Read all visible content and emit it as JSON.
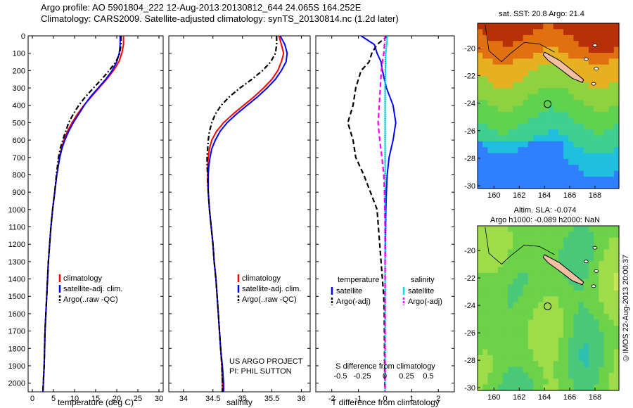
{
  "header": {
    "line1": "Argo profile: AO 5901804_222 12-Aug-2013 20130812_644 24.065S 164.252E",
    "line2": "Climatology: CARS2009. Satellite-adjusted climatology: synTS_20130814.nc (1.2d later)"
  },
  "colors": {
    "climatology": "#ff0000",
    "satellite": "#0000ff",
    "argo": "#000000",
    "salinity_satellite": "#00e5e5",
    "salinity_argo": "#ff00ff",
    "land": "#f2c0a0"
  },
  "chart_data": [
    {
      "id": "temperature",
      "type": "line",
      "xlabel": "temperature (deg C)",
      "ylabel": "",
      "xlim": [
        -1,
        31
      ],
      "ylim": [
        2050,
        0
      ],
      "xticks": [
        "0",
        "5",
        "10",
        "15",
        "20",
        "25",
        "30"
      ],
      "xtick_values": [
        0,
        5,
        10,
        15,
        20,
        25,
        30
      ],
      "yticks": [
        "0",
        "100",
        "200",
        "300",
        "400",
        "500",
        "600",
        "700",
        "800",
        "900",
        "1000",
        "1100",
        "1200",
        "1300",
        "1400",
        "1500",
        "1600",
        "1700",
        "1800",
        "1900",
        "2000"
      ],
      "ytick_values": [
        0,
        100,
        200,
        300,
        400,
        500,
        600,
        700,
        800,
        900,
        1000,
        1100,
        1200,
        1300,
        1400,
        1500,
        1600,
        1700,
        1800,
        1900,
        2000
      ],
      "depth": [
        0,
        50,
        100,
        150,
        200,
        250,
        300,
        350,
        400,
        450,
        500,
        550,
        600,
        650,
        700,
        800,
        900,
        1000,
        1100,
        1200,
        1300,
        1400,
        1500,
        1600,
        1700,
        1800,
        1900,
        2000,
        2050
      ],
      "series": [
        {
          "name": "climatology",
          "style": "solid",
          "values": [
            21.6,
            21.6,
            21.2,
            20.5,
            19.2,
            17.6,
            15.8,
            14.0,
            12.2,
            10.7,
            9.4,
            8.3,
            7.5,
            6.9,
            6.4,
            5.8,
            5.3,
            4.8,
            4.4,
            4.1,
            3.8,
            3.6,
            3.4,
            3.2,
            3.0,
            2.9,
            2.8,
            2.6,
            2.5
          ]
        },
        {
          "name": "satellite-adj. clim.",
          "style": "solid",
          "values": [
            20.8,
            20.8,
            20.6,
            20.0,
            18.9,
            17.4,
            15.6,
            13.8,
            12.3,
            11.0,
            9.7,
            8.6,
            7.7,
            7.0,
            6.5,
            5.8,
            5.3,
            4.8,
            4.4,
            4.1,
            3.8,
            3.6,
            3.4,
            3.2,
            3.0,
            2.9,
            2.8,
            2.6,
            2.5
          ]
        },
        {
          "name": "Argo(..raw -QC)",
          "style": "dashdot",
          "values": [
            21.0,
            21.0,
            20.7,
            19.8,
            18.2,
            16.4,
            14.5,
            12.6,
            11.0,
            9.7,
            8.6,
            7.9,
            7.2,
            6.6,
            6.2,
            5.7,
            5.3,
            4.8,
            4.4,
            4.1,
            3.8,
            3.6,
            3.4,
            3.2,
            3.0,
            2.9,
            2.8,
            2.6,
            2.5
          ]
        }
      ],
      "legend": [
        "climatology",
        "satellite-adj. clim.",
        "Argo(..raw -QC)"
      ],
      "legend_placement": "lower-right"
    },
    {
      "id": "salinity",
      "type": "line",
      "xlabel": "salinity",
      "xlim": [
        33.75,
        36.15
      ],
      "ylim": [
        2050,
        0
      ],
      "xticks": [
        "34",
        "34.5",
        "35",
        "35.5",
        "36"
      ],
      "xtick_values": [
        34,
        34.5,
        35,
        35.5,
        36
      ],
      "depth": [
        0,
        50,
        100,
        150,
        200,
        250,
        300,
        350,
        400,
        450,
        500,
        550,
        600,
        650,
        700,
        750,
        800,
        850,
        900,
        1000,
        1100,
        1200,
        1300,
        1400,
        1500,
        1600,
        1700,
        1800,
        1900,
        2000,
        2050
      ],
      "series": [
        {
          "name": "climatology",
          "style": "solid",
          "values": [
            35.62,
            35.66,
            35.7,
            35.66,
            35.6,
            35.5,
            35.36,
            35.2,
            35.02,
            34.84,
            34.68,
            34.56,
            34.48,
            34.44,
            34.42,
            34.41,
            34.41,
            34.41,
            34.42,
            34.44,
            34.47,
            34.5,
            34.52,
            34.55,
            34.57,
            34.59,
            34.61,
            34.63,
            34.65,
            34.66,
            34.66
          ]
        },
        {
          "name": "satellite-adj. clim.",
          "style": "solid",
          "values": [
            35.64,
            35.72,
            35.76,
            35.74,
            35.66,
            35.56,
            35.42,
            35.26,
            35.08,
            34.9,
            34.74,
            34.62,
            34.54,
            34.48,
            34.45,
            34.43,
            34.42,
            34.42,
            34.42,
            34.44,
            34.47,
            34.5,
            34.52,
            34.55,
            34.57,
            34.59,
            34.61,
            34.63,
            34.66,
            34.68,
            34.68
          ]
        },
        {
          "name": "Argo(..raw -QC)",
          "style": "dashdot",
          "values": [
            35.58,
            35.58,
            35.56,
            35.48,
            35.34,
            35.16,
            34.96,
            34.78,
            34.64,
            34.54,
            34.48,
            34.44,
            34.42,
            34.41,
            34.4,
            34.4,
            34.41,
            34.41,
            34.42,
            34.44,
            34.47,
            34.5,
            34.52,
            34.55,
            34.57,
            34.59,
            34.61,
            34.63,
            34.65,
            34.66,
            34.66
          ]
        }
      ],
      "legend": [
        "climatology",
        "satellite-adj. clim.",
        "Argo(..raw -QC)"
      ],
      "legend_placement": "lower-right",
      "annotation": [
        "US ARGO PROJECT",
        "PI: PHIL SUTTON"
      ]
    },
    {
      "id": "difference",
      "type": "line",
      "xlabel_bottom": "T difference from climatology",
      "xlabel_top": "S difference from climatology",
      "xlim": [
        -2.6,
        2.6
      ],
      "ylim": [
        2050,
        0
      ],
      "xticks": [
        "-2",
        "-1",
        "0",
        "1",
        "2"
      ],
      "xtick_values": [
        -2,
        -1,
        0,
        1,
        2
      ],
      "s_ticks": [
        "-0.5",
        "-0.25",
        "0",
        "0.25",
        "0.5"
      ],
      "s_tick_values": [
        -0.5,
        -0.25,
        0,
        0.25,
        0.5
      ],
      "depth": [
        0,
        50,
        100,
        150,
        200,
        300,
        400,
        500,
        600,
        700,
        800,
        900,
        1000,
        1100,
        1200,
        1300,
        1400,
        1500,
        1600,
        1800,
        2000,
        2050
      ],
      "series": [
        {
          "name": "temperature satellite",
          "group": "temperature",
          "style": "solid",
          "color": "#0000ff",
          "values": [
            -0.9,
            -0.4,
            -0.3,
            -0.15,
            -0.1,
            0.05,
            0.3,
            0.4,
            0.3,
            0.15,
            0.08,
            0.05,
            0.03,
            0.02,
            0.01,
            0.0,
            0.0,
            0.0,
            0.0,
            0.0,
            0.0,
            0.0
          ]
        },
        {
          "name": "temperature Argo(-adj)",
          "group": "temperature",
          "style": "dashed",
          "color": "#000000",
          "values": [
            0.1,
            -0.3,
            -0.5,
            -0.6,
            -0.9,
            -1.1,
            -1.2,
            -1.4,
            -1.2,
            -1.1,
            -0.8,
            -0.55,
            -0.3,
            -0.25,
            -0.2,
            -0.15,
            -0.1,
            -0.05,
            -0.03,
            -0.02,
            -0.01,
            0.0
          ]
        },
        {
          "name": "salinity satellite",
          "group": "salinity",
          "style": "solid",
          "color": "#00e5e5",
          "values": [
            0.08,
            0.06,
            0.03,
            0.02,
            0.01,
            0.0,
            0.0,
            0.0,
            0.0,
            0.0,
            0.0,
            0.0,
            0.0,
            0.0,
            0.0,
            0.0,
            0.0,
            0.0,
            0.0,
            0.0,
            0.0,
            0.0
          ]
        },
        {
          "name": "salinity Argo(-adj)",
          "group": "salinity",
          "style": "dashed",
          "color": "#ff00ff",
          "values": [
            0.0,
            -0.02,
            -0.05,
            -0.1,
            -0.14,
            -0.18,
            -0.22,
            -0.26,
            -0.2,
            -0.12,
            -0.05,
            -0.02,
            -0.01,
            0.0,
            0.0,
            0.0,
            0.0,
            0.0,
            0.0,
            0.0,
            0.0,
            0.0
          ]
        }
      ],
      "legend_headers": [
        "temperature",
        "salinity"
      ],
      "legend": [
        "satellite",
        "Argo(-adj)",
        "satellite",
        "Argo(-adj)"
      ],
      "legend_placement": "lower-center"
    },
    {
      "id": "sst_map",
      "type": "heatmap",
      "title": "sat. SST: 20.8 Argo: 21.4",
      "xticks": [
        "160",
        "162",
        "164",
        "166",
        "168"
      ],
      "xtick_values": [
        160,
        162,
        164,
        166,
        168
      ],
      "yticks": [
        "-20",
        "-22",
        "-24",
        "-26",
        "-28",
        "-30"
      ],
      "ytick_values": [
        -20,
        -22,
        -24,
        -26,
        -28,
        -30
      ],
      "xlim": [
        158.7,
        169.9
      ],
      "ylim": [
        -30.2,
        -18.2
      ],
      "marker": [
        164.25,
        -24.07
      ],
      "colors": [
        "#2f7fff",
        "#1fbfe0",
        "#3fcf8f",
        "#5fd24f",
        "#8fd23f",
        "#e6b020",
        "#e07010",
        "#b83008"
      ]
    },
    {
      "id": "sla_map",
      "type": "heatmap",
      "title": "Altim. SLA: -0.074",
      "subtitle": "Argo h1000: -0.089 h2000: NaN",
      "xticks": [
        "160",
        "162",
        "164",
        "166",
        "168"
      ],
      "xtick_values": [
        160,
        162,
        164,
        166,
        168
      ],
      "yticks": [
        "-20",
        "-22",
        "-24",
        "-26",
        "-28",
        "-30"
      ],
      "ytick_values": [
        -20,
        -22,
        -24,
        -26,
        -28,
        -30
      ],
      "xlim": [
        158.7,
        169.9
      ],
      "ylim": [
        -30.2,
        -18.2
      ],
      "marker": [
        164.25,
        -24.07
      ],
      "credit": "©IMOS 22-Aug-2013 20:00:37",
      "colors": [
        "#2fbfaf",
        "#4ac87a",
        "#6bd24a",
        "#9fdc4a",
        "#c8e655"
      ]
    }
  ]
}
